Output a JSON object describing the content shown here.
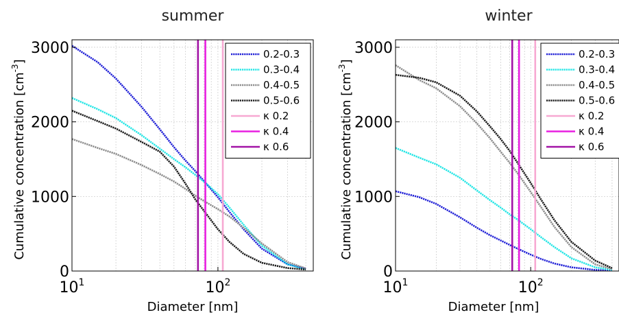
{
  "chart_data": [
    {
      "type": "line",
      "title": "summer",
      "xlabel": "Diameter [nm]",
      "ylabel": "Cumulative concentration [cm",
      "ylabel_exp": "-3",
      "ylabel_close": "]",
      "x_scale": "log",
      "xlim": [
        10,
        450
      ],
      "ylim": [
        0,
        3100
      ],
      "yticks": [
        "0",
        "1000",
        "2000",
        "3000"
      ],
      "yticks_values": [
        0,
        1000,
        2000,
        3000
      ],
      "xticks_base": "10",
      "xticks": [
        {
          "value": 10,
          "exp": "1"
        },
        {
          "value": 100,
          "exp": "2"
        }
      ],
      "grid": true,
      "legend_position": "top-right",
      "x": [
        10,
        15,
        20,
        30,
        40,
        50,
        60,
        70,
        80,
        100,
        120,
        150,
        200,
        300,
        400
      ],
      "series": [
        {
          "name": "0.2-0.3",
          "color": "#1f1fd6",
          "values": [
            3020,
            2800,
            2580,
            2200,
            1900,
            1660,
            1480,
            1340,
            1210,
            990,
            790,
            560,
            300,
            90,
            30
          ]
        },
        {
          "name": "0.3-0.4",
          "color": "#22e5e5",
          "values": [
            2320,
            2170,
            2050,
            1820,
            1640,
            1500,
            1390,
            1290,
            1200,
            1030,
            850,
            620,
            340,
            90,
            25
          ]
        },
        {
          "name": "0.4-0.5",
          "color": "#8c8c8c",
          "values": [
            1770,
            1650,
            1570,
            1420,
            1300,
            1200,
            1100,
            1010,
            940,
            830,
            730,
            580,
            370,
            120,
            35
          ]
        },
        {
          "name": "0.5-0.6",
          "color": "#1a1a1a",
          "values": [
            2150,
            2010,
            1910,
            1730,
            1600,
            1400,
            1170,
            960,
            810,
            560,
            390,
            230,
            110,
            40,
            20
          ]
        }
      ],
      "vlines": [
        {
          "label": "κ 0.2",
          "x": 108,
          "color": "#f7a8d2"
        },
        {
          "label": "κ 0.4",
          "x": 82,
          "color": "#e81ee0"
        },
        {
          "label": "κ 0.6",
          "x": 73,
          "color": "#a213a6"
        }
      ]
    },
    {
      "type": "line",
      "title": "winter",
      "xlabel": "Diameter [nm]",
      "ylabel": "Cumulative concentration [cm",
      "ylabel_exp": "-3",
      "ylabel_close": "]",
      "x_scale": "log",
      "xlim": [
        10,
        450
      ],
      "ylim": [
        0,
        3100
      ],
      "yticks": [
        "0",
        "1000",
        "2000",
        "3000"
      ],
      "yticks_values": [
        0,
        1000,
        2000,
        3000
      ],
      "xticks_base": "10",
      "xticks": [
        {
          "value": 10,
          "exp": "1"
        },
        {
          "value": 100,
          "exp": "2"
        }
      ],
      "grid": true,
      "legend_position": "top-right",
      "x": [
        10,
        15,
        20,
        30,
        40,
        50,
        60,
        70,
        80,
        100,
        120,
        150,
        200,
        300,
        400
      ],
      "series": [
        {
          "name": "0.2-0.3",
          "color": "#1f1fd6",
          "values": [
            1070,
            990,
            900,
            720,
            580,
            480,
            410,
            350,
            300,
            220,
            160,
            100,
            50,
            15,
            5
          ]
        },
        {
          "name": "0.3-0.4",
          "color": "#22e5e5",
          "values": [
            1650,
            1520,
            1430,
            1250,
            1080,
            950,
            850,
            760,
            690,
            560,
            450,
            320,
            170,
            50,
            15
          ]
        },
        {
          "name": "0.4-0.5",
          "color": "#8c8c8c",
          "values": [
            2760,
            2560,
            2450,
            2210,
            1980,
            1780,
            1600,
            1450,
            1310,
            1060,
            850,
            590,
            320,
            90,
            25
          ]
        },
        {
          "name": "0.5-0.6",
          "color": "#1a1a1a",
          "values": [
            2630,
            2590,
            2530,
            2350,
            2140,
            1940,
            1770,
            1610,
            1450,
            1180,
            950,
            680,
            390,
            140,
            40
          ]
        }
      ],
      "vlines": [
        {
          "label": "κ 0.2",
          "x": 108,
          "color": "#f7a8d2"
        },
        {
          "label": "κ 0.4",
          "x": 82,
          "color": "#e81ee0"
        },
        {
          "label": "κ 0.6",
          "x": 73,
          "color": "#a213a6"
        }
      ]
    }
  ]
}
